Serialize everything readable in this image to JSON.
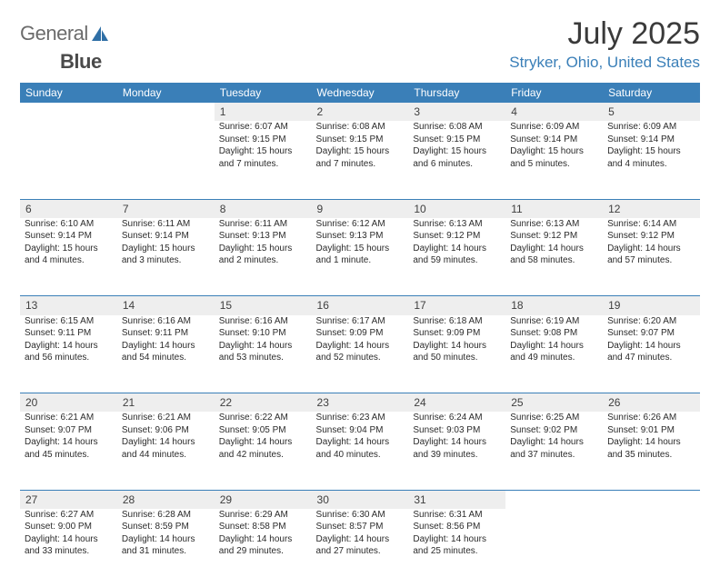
{
  "brand": {
    "part1": "General",
    "part2": "Blue"
  },
  "title": "July 2025",
  "location": "Stryker, Ohio, United States",
  "header_bg": "#3a7fb8",
  "daynum_bg": "#eeeeee",
  "weekdays": [
    "Sunday",
    "Monday",
    "Tuesday",
    "Wednesday",
    "Thursday",
    "Friday",
    "Saturday"
  ],
  "weeks": [
    {
      "nums": [
        "",
        "",
        "1",
        "2",
        "3",
        "4",
        "5"
      ],
      "cells": [
        {},
        {},
        {
          "sunrise": "Sunrise: 6:07 AM",
          "sunset": "Sunset: 9:15 PM",
          "dl1": "Daylight: 15 hours",
          "dl2": "and 7 minutes."
        },
        {
          "sunrise": "Sunrise: 6:08 AM",
          "sunset": "Sunset: 9:15 PM",
          "dl1": "Daylight: 15 hours",
          "dl2": "and 7 minutes."
        },
        {
          "sunrise": "Sunrise: 6:08 AM",
          "sunset": "Sunset: 9:15 PM",
          "dl1": "Daylight: 15 hours",
          "dl2": "and 6 minutes."
        },
        {
          "sunrise": "Sunrise: 6:09 AM",
          "sunset": "Sunset: 9:14 PM",
          "dl1": "Daylight: 15 hours",
          "dl2": "and 5 minutes."
        },
        {
          "sunrise": "Sunrise: 6:09 AM",
          "sunset": "Sunset: 9:14 PM",
          "dl1": "Daylight: 15 hours",
          "dl2": "and 4 minutes."
        }
      ]
    },
    {
      "nums": [
        "6",
        "7",
        "8",
        "9",
        "10",
        "11",
        "12"
      ],
      "cells": [
        {
          "sunrise": "Sunrise: 6:10 AM",
          "sunset": "Sunset: 9:14 PM",
          "dl1": "Daylight: 15 hours",
          "dl2": "and 4 minutes."
        },
        {
          "sunrise": "Sunrise: 6:11 AM",
          "sunset": "Sunset: 9:14 PM",
          "dl1": "Daylight: 15 hours",
          "dl2": "and 3 minutes."
        },
        {
          "sunrise": "Sunrise: 6:11 AM",
          "sunset": "Sunset: 9:13 PM",
          "dl1": "Daylight: 15 hours",
          "dl2": "and 2 minutes."
        },
        {
          "sunrise": "Sunrise: 6:12 AM",
          "sunset": "Sunset: 9:13 PM",
          "dl1": "Daylight: 15 hours",
          "dl2": "and 1 minute."
        },
        {
          "sunrise": "Sunrise: 6:13 AM",
          "sunset": "Sunset: 9:12 PM",
          "dl1": "Daylight: 14 hours",
          "dl2": "and 59 minutes."
        },
        {
          "sunrise": "Sunrise: 6:13 AM",
          "sunset": "Sunset: 9:12 PM",
          "dl1": "Daylight: 14 hours",
          "dl2": "and 58 minutes."
        },
        {
          "sunrise": "Sunrise: 6:14 AM",
          "sunset": "Sunset: 9:12 PM",
          "dl1": "Daylight: 14 hours",
          "dl2": "and 57 minutes."
        }
      ]
    },
    {
      "nums": [
        "13",
        "14",
        "15",
        "16",
        "17",
        "18",
        "19"
      ],
      "cells": [
        {
          "sunrise": "Sunrise: 6:15 AM",
          "sunset": "Sunset: 9:11 PM",
          "dl1": "Daylight: 14 hours",
          "dl2": "and 56 minutes."
        },
        {
          "sunrise": "Sunrise: 6:16 AM",
          "sunset": "Sunset: 9:11 PM",
          "dl1": "Daylight: 14 hours",
          "dl2": "and 54 minutes."
        },
        {
          "sunrise": "Sunrise: 6:16 AM",
          "sunset": "Sunset: 9:10 PM",
          "dl1": "Daylight: 14 hours",
          "dl2": "and 53 minutes."
        },
        {
          "sunrise": "Sunrise: 6:17 AM",
          "sunset": "Sunset: 9:09 PM",
          "dl1": "Daylight: 14 hours",
          "dl2": "and 52 minutes."
        },
        {
          "sunrise": "Sunrise: 6:18 AM",
          "sunset": "Sunset: 9:09 PM",
          "dl1": "Daylight: 14 hours",
          "dl2": "and 50 minutes."
        },
        {
          "sunrise": "Sunrise: 6:19 AM",
          "sunset": "Sunset: 9:08 PM",
          "dl1": "Daylight: 14 hours",
          "dl2": "and 49 minutes."
        },
        {
          "sunrise": "Sunrise: 6:20 AM",
          "sunset": "Sunset: 9:07 PM",
          "dl1": "Daylight: 14 hours",
          "dl2": "and 47 minutes."
        }
      ]
    },
    {
      "nums": [
        "20",
        "21",
        "22",
        "23",
        "24",
        "25",
        "26"
      ],
      "cells": [
        {
          "sunrise": "Sunrise: 6:21 AM",
          "sunset": "Sunset: 9:07 PM",
          "dl1": "Daylight: 14 hours",
          "dl2": "and 45 minutes."
        },
        {
          "sunrise": "Sunrise: 6:21 AM",
          "sunset": "Sunset: 9:06 PM",
          "dl1": "Daylight: 14 hours",
          "dl2": "and 44 minutes."
        },
        {
          "sunrise": "Sunrise: 6:22 AM",
          "sunset": "Sunset: 9:05 PM",
          "dl1": "Daylight: 14 hours",
          "dl2": "and 42 minutes."
        },
        {
          "sunrise": "Sunrise: 6:23 AM",
          "sunset": "Sunset: 9:04 PM",
          "dl1": "Daylight: 14 hours",
          "dl2": "and 40 minutes."
        },
        {
          "sunrise": "Sunrise: 6:24 AM",
          "sunset": "Sunset: 9:03 PM",
          "dl1": "Daylight: 14 hours",
          "dl2": "and 39 minutes."
        },
        {
          "sunrise": "Sunrise: 6:25 AM",
          "sunset": "Sunset: 9:02 PM",
          "dl1": "Daylight: 14 hours",
          "dl2": "and 37 minutes."
        },
        {
          "sunrise": "Sunrise: 6:26 AM",
          "sunset": "Sunset: 9:01 PM",
          "dl1": "Daylight: 14 hours",
          "dl2": "and 35 minutes."
        }
      ]
    },
    {
      "nums": [
        "27",
        "28",
        "29",
        "30",
        "31",
        "",
        ""
      ],
      "cells": [
        {
          "sunrise": "Sunrise: 6:27 AM",
          "sunset": "Sunset: 9:00 PM",
          "dl1": "Daylight: 14 hours",
          "dl2": "and 33 minutes."
        },
        {
          "sunrise": "Sunrise: 6:28 AM",
          "sunset": "Sunset: 8:59 PM",
          "dl1": "Daylight: 14 hours",
          "dl2": "and 31 minutes."
        },
        {
          "sunrise": "Sunrise: 6:29 AM",
          "sunset": "Sunset: 8:58 PM",
          "dl1": "Daylight: 14 hours",
          "dl2": "and 29 minutes."
        },
        {
          "sunrise": "Sunrise: 6:30 AM",
          "sunset": "Sunset: 8:57 PM",
          "dl1": "Daylight: 14 hours",
          "dl2": "and 27 minutes."
        },
        {
          "sunrise": "Sunrise: 6:31 AM",
          "sunset": "Sunset: 8:56 PM",
          "dl1": "Daylight: 14 hours",
          "dl2": "and 25 minutes."
        },
        {},
        {}
      ]
    }
  ]
}
